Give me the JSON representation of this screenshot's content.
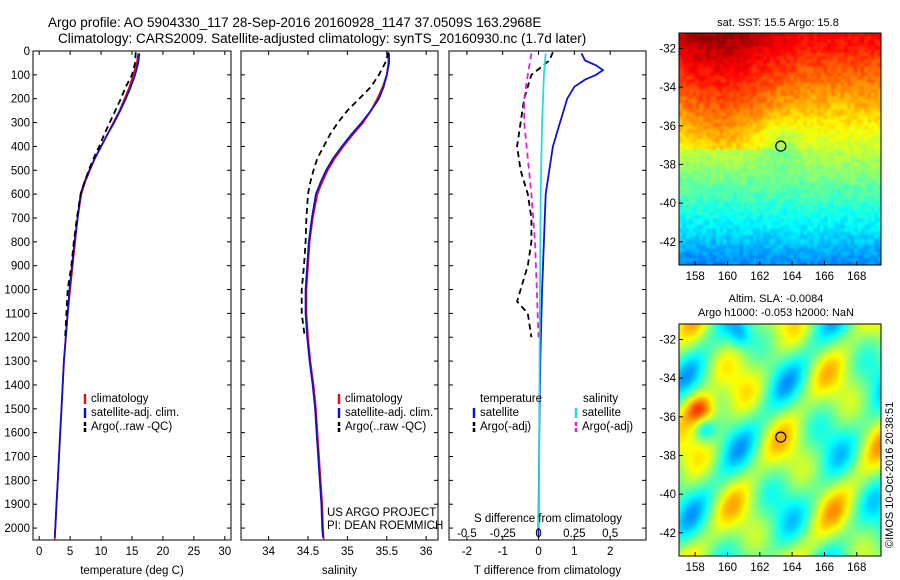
{
  "header": {
    "line1": "Argo profile: AO 5904330_117 28-Sep-2016 20160928_1147 37.0509S 163.2968E",
    "line2": "Climatology: CARS2009. Satellite-adjusted climatology: synTS_20160930.nc (1.7d later)"
  },
  "project": {
    "line1": "US ARGO PROJECT",
    "line2": "PI: DEAN ROEMMICH"
  },
  "credit": "©IMOS 10-Oct-2016 20:38:51",
  "colors": {
    "climatology": "#dd1111",
    "satellite": "#1111cc",
    "argo": "#000000",
    "satellite_s": "#22dddd",
    "argo_s": "#dd22dd"
  },
  "chart_data": [
    {
      "id": "temperature",
      "type": "line",
      "xlabel": "temperature (deg C)",
      "ylim": [
        0,
        2050
      ],
      "xlim": [
        -1,
        31
      ],
      "xticks": [
        0,
        5,
        10,
        15,
        20,
        25,
        30
      ],
      "xtick_labels": [
        "0",
        "5",
        "10",
        "15",
        "20",
        "25",
        "30"
      ],
      "yticks": [
        0,
        100,
        200,
        300,
        400,
        500,
        600,
        700,
        800,
        900,
        1000,
        1100,
        1200,
        1300,
        1400,
        1500,
        1600,
        1700,
        1800,
        1900,
        2000
      ],
      "legend": [
        "climatology",
        "satellite-adj. clim.",
        "Argo(..raw -QC)"
      ],
      "series": [
        {
          "name": "climatology",
          "color": "#dd1111",
          "dash": "",
          "points": [
            [
              16.0,
              10
            ],
            [
              15.8,
              50
            ],
            [
              15.2,
              100
            ],
            [
              14.6,
              150
            ],
            [
              13.8,
              200
            ],
            [
              13.0,
              250
            ],
            [
              12.0,
              300
            ],
            [
              11.0,
              350
            ],
            [
              10.0,
              400
            ],
            [
              9.0,
              450
            ],
            [
              8.2,
              500
            ],
            [
              7.4,
              550
            ],
            [
              6.8,
              600
            ],
            [
              6.2,
              700
            ],
            [
              5.8,
              800
            ],
            [
              5.4,
              900
            ],
            [
              5.0,
              1000
            ],
            [
              4.6,
              1100
            ],
            [
              4.3,
              1200
            ],
            [
              4.0,
              1300
            ],
            [
              3.8,
              1400
            ],
            [
              3.6,
              1500
            ],
            [
              3.4,
              1600
            ],
            [
              3.2,
              1700
            ],
            [
              3.0,
              1800
            ],
            [
              2.8,
              1900
            ],
            [
              2.6,
              2000
            ],
            [
              2.5,
              2050
            ]
          ]
        },
        {
          "name": "satellite-adj. clim.",
          "color": "#1111cc",
          "dash": "",
          "points": [
            [
              16.2,
              10
            ],
            [
              16.0,
              50
            ],
            [
              15.5,
              100
            ],
            [
              14.8,
              150
            ],
            [
              14.0,
              200
            ],
            [
              13.1,
              250
            ],
            [
              12.1,
              300
            ],
            [
              11.0,
              350
            ],
            [
              10.0,
              400
            ],
            [
              9.0,
              450
            ],
            [
              8.1,
              500
            ],
            [
              7.3,
              550
            ],
            [
              6.7,
              600
            ],
            [
              6.2,
              700
            ],
            [
              5.7,
              800
            ],
            [
              5.3,
              900
            ],
            [
              4.9,
              1000
            ],
            [
              4.6,
              1100
            ],
            [
              4.3,
              1200
            ],
            [
              4.0,
              1300
            ],
            [
              3.8,
              1400
            ],
            [
              3.6,
              1500
            ],
            [
              3.4,
              1600
            ],
            [
              3.2,
              1700
            ],
            [
              3.0,
              1800
            ],
            [
              2.8,
              1900
            ],
            [
              2.6,
              2000
            ],
            [
              2.5,
              2040
            ]
          ]
        },
        {
          "name": "Argo(..raw -QC)",
          "color": "#000000",
          "dash": "6,4",
          "points": [
            [
              15.6,
              5
            ],
            [
              15.5,
              50
            ],
            [
              15.0,
              100
            ],
            [
              14.0,
              150
            ],
            [
              13.2,
              200
            ],
            [
              12.3,
              250
            ],
            [
              11.4,
              300
            ],
            [
              10.5,
              350
            ],
            [
              9.7,
              400
            ],
            [
              8.8,
              450
            ],
            [
              8.0,
              500
            ],
            [
              7.3,
              550
            ],
            [
              6.7,
              600
            ],
            [
              6.1,
              700
            ],
            [
              5.6,
              800
            ],
            [
              5.2,
              900
            ],
            [
              4.6,
              1000
            ],
            [
              4.4,
              1100
            ],
            [
              4.2,
              1200
            ]
          ]
        }
      ]
    },
    {
      "id": "salinity",
      "type": "line",
      "xlabel": "salinity",
      "ylim": [
        0,
        2050
      ],
      "xlim": [
        33.65,
        36.15
      ],
      "xticks": [
        34,
        34.5,
        35,
        35.5,
        36
      ],
      "xtick_labels": [
        "34",
        "34.5",
        "35",
        "35.5",
        "36"
      ],
      "legend": [
        "climatology",
        "satellite-adj. clim.",
        "Argo(..raw -QC)"
      ],
      "series": [
        {
          "name": "climatology",
          "color": "#dd1111",
          "dash": "",
          "points": [
            [
              35.52,
              10
            ],
            [
              35.52,
              50
            ],
            [
              35.5,
              100
            ],
            [
              35.45,
              150
            ],
            [
              35.38,
              200
            ],
            [
              35.3,
              250
            ],
            [
              35.2,
              300
            ],
            [
              35.07,
              350
            ],
            [
              34.95,
              400
            ],
            [
              34.84,
              450
            ],
            [
              34.75,
              500
            ],
            [
              34.68,
              550
            ],
            [
              34.62,
              600
            ],
            [
              34.56,
              700
            ],
            [
              34.52,
              800
            ],
            [
              34.5,
              900
            ],
            [
              34.48,
              1000
            ],
            [
              34.48,
              1100
            ],
            [
              34.5,
              1200
            ],
            [
              34.53,
              1300
            ],
            [
              34.57,
              1400
            ],
            [
              34.6,
              1500
            ],
            [
              34.62,
              1600
            ],
            [
              34.64,
              1700
            ],
            [
              34.66,
              1800
            ],
            [
              34.68,
              1900
            ],
            [
              34.69,
              2000
            ],
            [
              34.7,
              2050
            ]
          ]
        },
        {
          "name": "satellite-adj. clim.",
          "color": "#1111cc",
          "dash": "",
          "points": [
            [
              35.53,
              10
            ],
            [
              35.53,
              50
            ],
            [
              35.5,
              100
            ],
            [
              35.46,
              150
            ],
            [
              35.4,
              200
            ],
            [
              35.3,
              250
            ],
            [
              35.18,
              300
            ],
            [
              35.05,
              350
            ],
            [
              34.93,
              400
            ],
            [
              34.82,
              450
            ],
            [
              34.73,
              500
            ],
            [
              34.66,
              550
            ],
            [
              34.6,
              600
            ],
            [
              34.55,
              700
            ],
            [
              34.51,
              800
            ],
            [
              34.49,
              900
            ],
            [
              34.47,
              1000
            ],
            [
              34.47,
              1100
            ],
            [
              34.49,
              1200
            ],
            [
              34.52,
              1300
            ],
            [
              34.56,
              1400
            ],
            [
              34.59,
              1500
            ],
            [
              34.61,
              1600
            ],
            [
              34.63,
              1700
            ],
            [
              34.65,
              1800
            ],
            [
              34.67,
              1900
            ],
            [
              34.68,
              2000
            ],
            [
              34.69,
              2040
            ]
          ]
        },
        {
          "name": "Argo(..raw -QC)",
          "color": "#000000",
          "dash": "6,4",
          "points": [
            [
              35.52,
              5
            ],
            [
              35.48,
              50
            ],
            [
              35.4,
              100
            ],
            [
              35.3,
              150
            ],
            [
              35.15,
              200
            ],
            [
              35.0,
              250
            ],
            [
              34.88,
              300
            ],
            [
              34.78,
              350
            ],
            [
              34.7,
              400
            ],
            [
              34.62,
              450
            ],
            [
              34.57,
              500
            ],
            [
              34.53,
              550
            ],
            [
              34.5,
              600
            ],
            [
              34.48,
              700
            ],
            [
              34.47,
              800
            ],
            [
              34.45,
              900
            ],
            [
              34.42,
              1000
            ],
            [
              34.42,
              1100
            ],
            [
              34.46,
              1200
            ]
          ]
        }
      ]
    },
    {
      "id": "difference",
      "type": "line",
      "xlabel": "T difference from climatology",
      "top_xlabel": "S difference from climatology",
      "ylim": [
        0,
        2050
      ],
      "xlim": [
        -2.5,
        3.0
      ],
      "xticks": [
        -2,
        -1,
        0,
        1,
        2
      ],
      "xtick_labels": [
        "-2",
        "-1",
        "0",
        "1",
        "2"
      ],
      "top_ticks": [
        -2,
        -1,
        0,
        1,
        2
      ],
      "top_tick_labels": [
        "-0.5",
        "-0.25",
        "0",
        "0.25",
        "0.5"
      ],
      "legend_headers": [
        "temperature",
        "salinity"
      ],
      "legend": [
        "satellite",
        "Argo(-adj)",
        "satellite",
        "Argo(-adj)"
      ],
      "series": [
        {
          "name": "T satellite",
          "color": "#1111cc",
          "dash": "",
          "points": [
            [
              1.2,
              10
            ],
            [
              1.3,
              40
            ],
            [
              1.6,
              60
            ],
            [
              1.8,
              80
            ],
            [
              1.6,
              100
            ],
            [
              1.3,
              120
            ],
            [
              1.0,
              150
            ],
            [
              0.8,
              200
            ],
            [
              0.6,
              300
            ],
            [
              0.4,
              400
            ],
            [
              0.3,
              500
            ],
            [
              0.2,
              600
            ],
            [
              0.15,
              800
            ],
            [
              0.1,
              1000
            ],
            [
              0.05,
              1300
            ],
            [
              0.02,
              1600
            ],
            [
              0.0,
              2000
            ],
            [
              0.0,
              2040
            ]
          ]
        },
        {
          "name": "T Argo(-adj)",
          "color": "#000000",
          "dash": "6,4",
          "points": [
            [
              0.4,
              5
            ],
            [
              0.3,
              40
            ],
            [
              -0.2,
              100
            ],
            [
              -0.4,
              200
            ],
            [
              -0.5,
              300
            ],
            [
              -0.6,
              400
            ],
            [
              -0.5,
              500
            ],
            [
              -0.3,
              600
            ],
            [
              -0.2,
              700
            ],
            [
              -0.2,
              800
            ],
            [
              -0.3,
              900
            ],
            [
              -0.5,
              1000
            ],
            [
              -0.6,
              1050
            ],
            [
              -0.3,
              1100
            ],
            [
              -0.2,
              1200
            ]
          ]
        },
        {
          "name": "S satellite",
          "color": "#22dddd",
          "dash": "",
          "points": [
            [
              0.2,
              10
            ],
            [
              0.15,
              100
            ],
            [
              0.1,
              300
            ],
            [
              0.06,
              600
            ],
            [
              0.04,
              1000
            ],
            [
              0.02,
              1500
            ],
            [
              0.01,
              2000
            ]
          ]
        },
        {
          "name": "S Argo(-adj)",
          "color": "#dd22dd",
          "dash": "6,4",
          "points": [
            [
              -0.2,
              10
            ],
            [
              -0.3,
              100
            ],
            [
              -0.4,
              200
            ],
            [
              -0.4,
              300
            ],
            [
              -0.3,
              450
            ],
            [
              -0.2,
              600
            ],
            [
              -0.1,
              800
            ],
            [
              -0.05,
              1000
            ],
            [
              0.0,
              1200
            ]
          ]
        }
      ]
    },
    {
      "id": "sst_map",
      "type": "heatmap",
      "title": "sat. SST: 15.5 Argo: 15.8",
      "xticks": [
        158,
        160,
        162,
        164,
        166,
        168
      ],
      "xtick_labels": [
        "158",
        "160",
        "162",
        "164",
        "166",
        "168"
      ],
      "yticks": [
        -32,
        -34,
        -36,
        -38,
        -40,
        -42
      ],
      "ytick_labels": [
        "-32",
        "-34",
        "-36",
        "-38",
        "-40",
        "-42"
      ],
      "xlim": [
        157,
        169.5
      ],
      "ylim": [
        -43.2,
        -31.2
      ],
      "marker": [
        163.3,
        -37.05
      ]
    },
    {
      "id": "sla_map",
      "type": "heatmap",
      "title1": "Altim. SLA: -0.0084",
      "title2": "Argo h1000: -0.053 h2000: NaN",
      "xticks": [
        158,
        160,
        162,
        164,
        166,
        168
      ],
      "xtick_labels": [
        "158",
        "160",
        "162",
        "164",
        "166",
        "168"
      ],
      "yticks": [
        -32,
        -34,
        -36,
        -38,
        -40,
        -42
      ],
      "ytick_labels": [
        "-32",
        "-34",
        "-36",
        "-38",
        "-40",
        "-42"
      ],
      "xlim": [
        157,
        169.5
      ],
      "ylim": [
        -43.2,
        -31.2
      ],
      "marker": [
        163.3,
        -37.05
      ]
    }
  ]
}
